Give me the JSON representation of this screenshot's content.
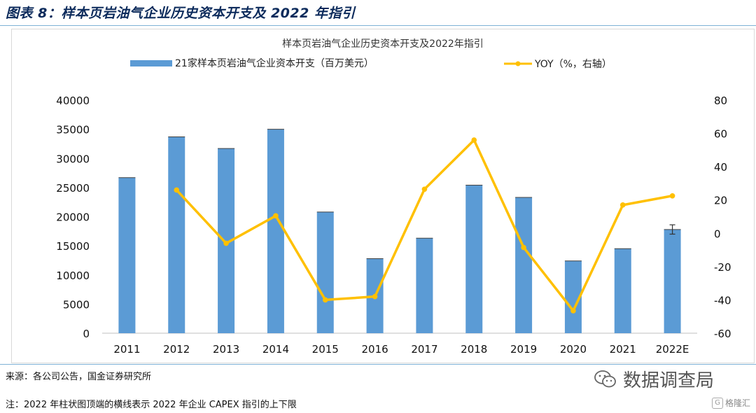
{
  "figure": {
    "title": "图表 8：样本页岩油气企业历史资本开支及 2022 年指引",
    "source": "来源：各公司公告，国金证券研究所",
    "note": "注：2022 年柱状图顶端的横线表示 2022 年企业 CAPEX 指引的上下限",
    "watermark_text": "数据调查局",
    "watermark_logo_text": "格隆汇",
    "watermark_icon": "wechat-icon",
    "watermark_logo_icon": "gelonghui-logo-icon"
  },
  "chart_data": {
    "type": "bar",
    "title": "样本页岩油气企业历史资本开支及2022年指引",
    "categories": [
      "2011",
      "2012",
      "2013",
      "2014",
      "2015",
      "2016",
      "2017",
      "2018",
      "2019",
      "2020",
      "2021",
      "2022E"
    ],
    "series": [
      {
        "name": "21家样本页岩油气企业资本开支（百万美元）",
        "type": "bar",
        "axis": "left",
        "color": "#5b9bd5",
        "values": [
          26700,
          33700,
          31700,
          35000,
          20800,
          12800,
          16300,
          25400,
          23300,
          12400,
          14500,
          17800
        ]
      },
      {
        "name": "YOY（%，右轴）",
        "type": "line",
        "axis": "right",
        "color": "#ffc000",
        "values": [
          null,
          26,
          -6,
          10.5,
          -40,
          -38,
          26.5,
          56,
          -8.5,
          -46.5,
          17,
          22.5
        ]
      }
    ],
    "error_range_2022E": [
      17000,
      18600
    ],
    "y_left": {
      "min": 0,
      "max": 40000,
      "ticks": [
        "0",
        "5000",
        "10000",
        "15000",
        "20000",
        "25000",
        "30000",
        "35000",
        "40000"
      ]
    },
    "y_right": {
      "min": -60,
      "max": 80,
      "ticks": [
        "-60",
        "-40",
        "-20",
        "0",
        "20",
        "40",
        "60",
        "80"
      ]
    },
    "legend_position": "top",
    "grid": false
  }
}
